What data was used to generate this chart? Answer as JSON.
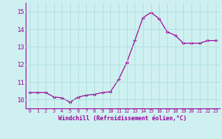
{
  "x": [
    0,
    1,
    2,
    3,
    4,
    5,
    6,
    7,
    8,
    9,
    10,
    11,
    12,
    13,
    14,
    15,
    16,
    17,
    18,
    19,
    20,
    21,
    22,
    23
  ],
  "y": [
    10.4,
    10.4,
    10.4,
    10.15,
    10.1,
    9.85,
    10.15,
    10.25,
    10.3,
    10.4,
    10.45,
    11.15,
    12.1,
    13.35,
    14.65,
    14.95,
    14.6,
    13.85,
    13.65,
    13.2,
    13.2,
    13.2,
    13.35,
    13.35
  ],
  "line_color": "#990099",
  "marker": "D",
  "marker_size": 2,
  "bg_color": "#cff0f0",
  "grid_color": "#aadddd",
  "xlabel": "Windchill (Refroidissement éolien,°C)",
  "xlabel_color": "#990099",
  "tick_color": "#990099",
  "ylim": [
    9.5,
    15.5
  ],
  "xlim": [
    -0.5,
    23.5
  ],
  "yticks": [
    10,
    11,
    12,
    13,
    14,
    15
  ],
  "xticks": [
    0,
    1,
    2,
    3,
    4,
    5,
    6,
    7,
    8,
    9,
    10,
    11,
    12,
    13,
    14,
    15,
    16,
    17,
    18,
    19,
    20,
    21,
    22,
    23
  ],
  "xtick_labels": [
    "0",
    "1",
    "2",
    "3",
    "4",
    "5",
    "6",
    "7",
    "8",
    "9",
    "10",
    "11",
    "12",
    "13",
    "14",
    "15",
    "16",
    "17",
    "18",
    "19",
    "20",
    "21",
    "22",
    "23"
  ]
}
